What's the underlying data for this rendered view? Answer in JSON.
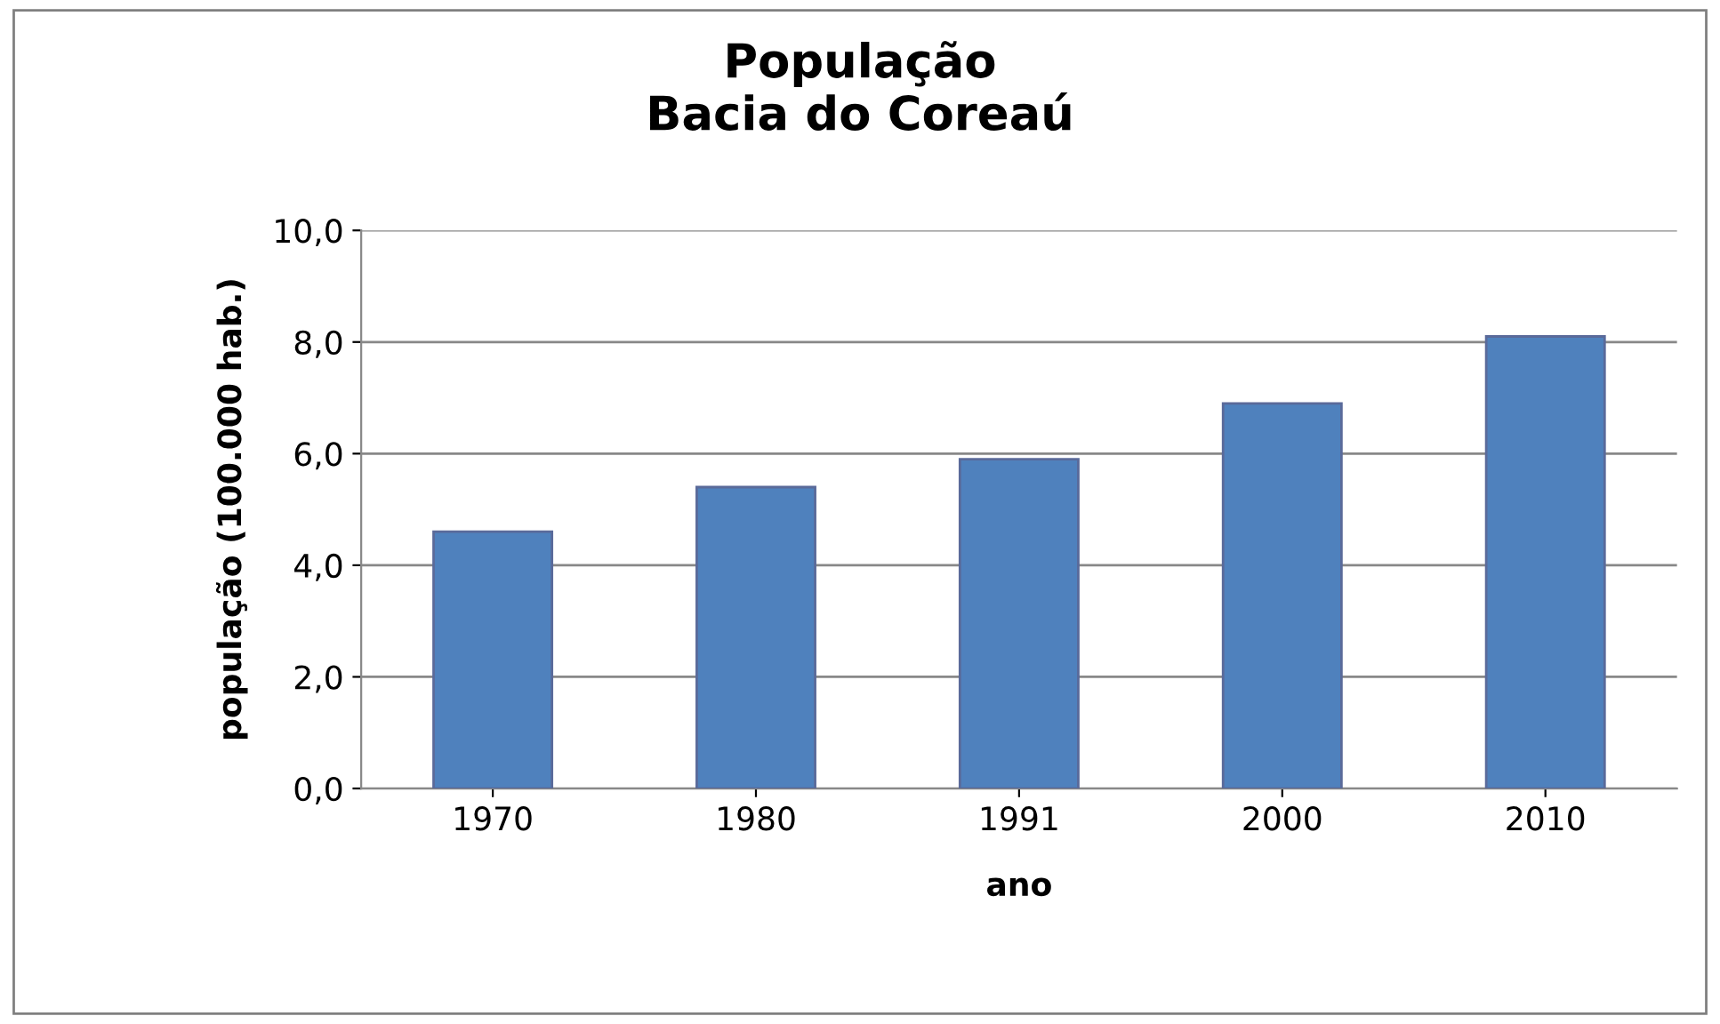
{
  "chart_data": {
    "type": "bar",
    "title": "População\nBacia do Coreaú",
    "xlabel": "ano",
    "ylabel": "população (100.000 hab.)",
    "categories": [
      "1970",
      "1980",
      "1991",
      "2000",
      "2010"
    ],
    "values": [
      4.6,
      5.4,
      5.9,
      6.9,
      8.1
    ],
    "color": "#4f81bd",
    "ylim": [
      0,
      10
    ],
    "yticks": [
      {
        "value": 0,
        "label": "0,0"
      },
      {
        "value": 2,
        "label": "2,0"
      },
      {
        "value": 4,
        "label": "4,0"
      },
      {
        "value": 6,
        "label": "6,0"
      },
      {
        "value": 8,
        "label": "8,0"
      },
      {
        "value": 10,
        "label": "10,0"
      }
    ],
    "grid": "y",
    "legend": false
  }
}
